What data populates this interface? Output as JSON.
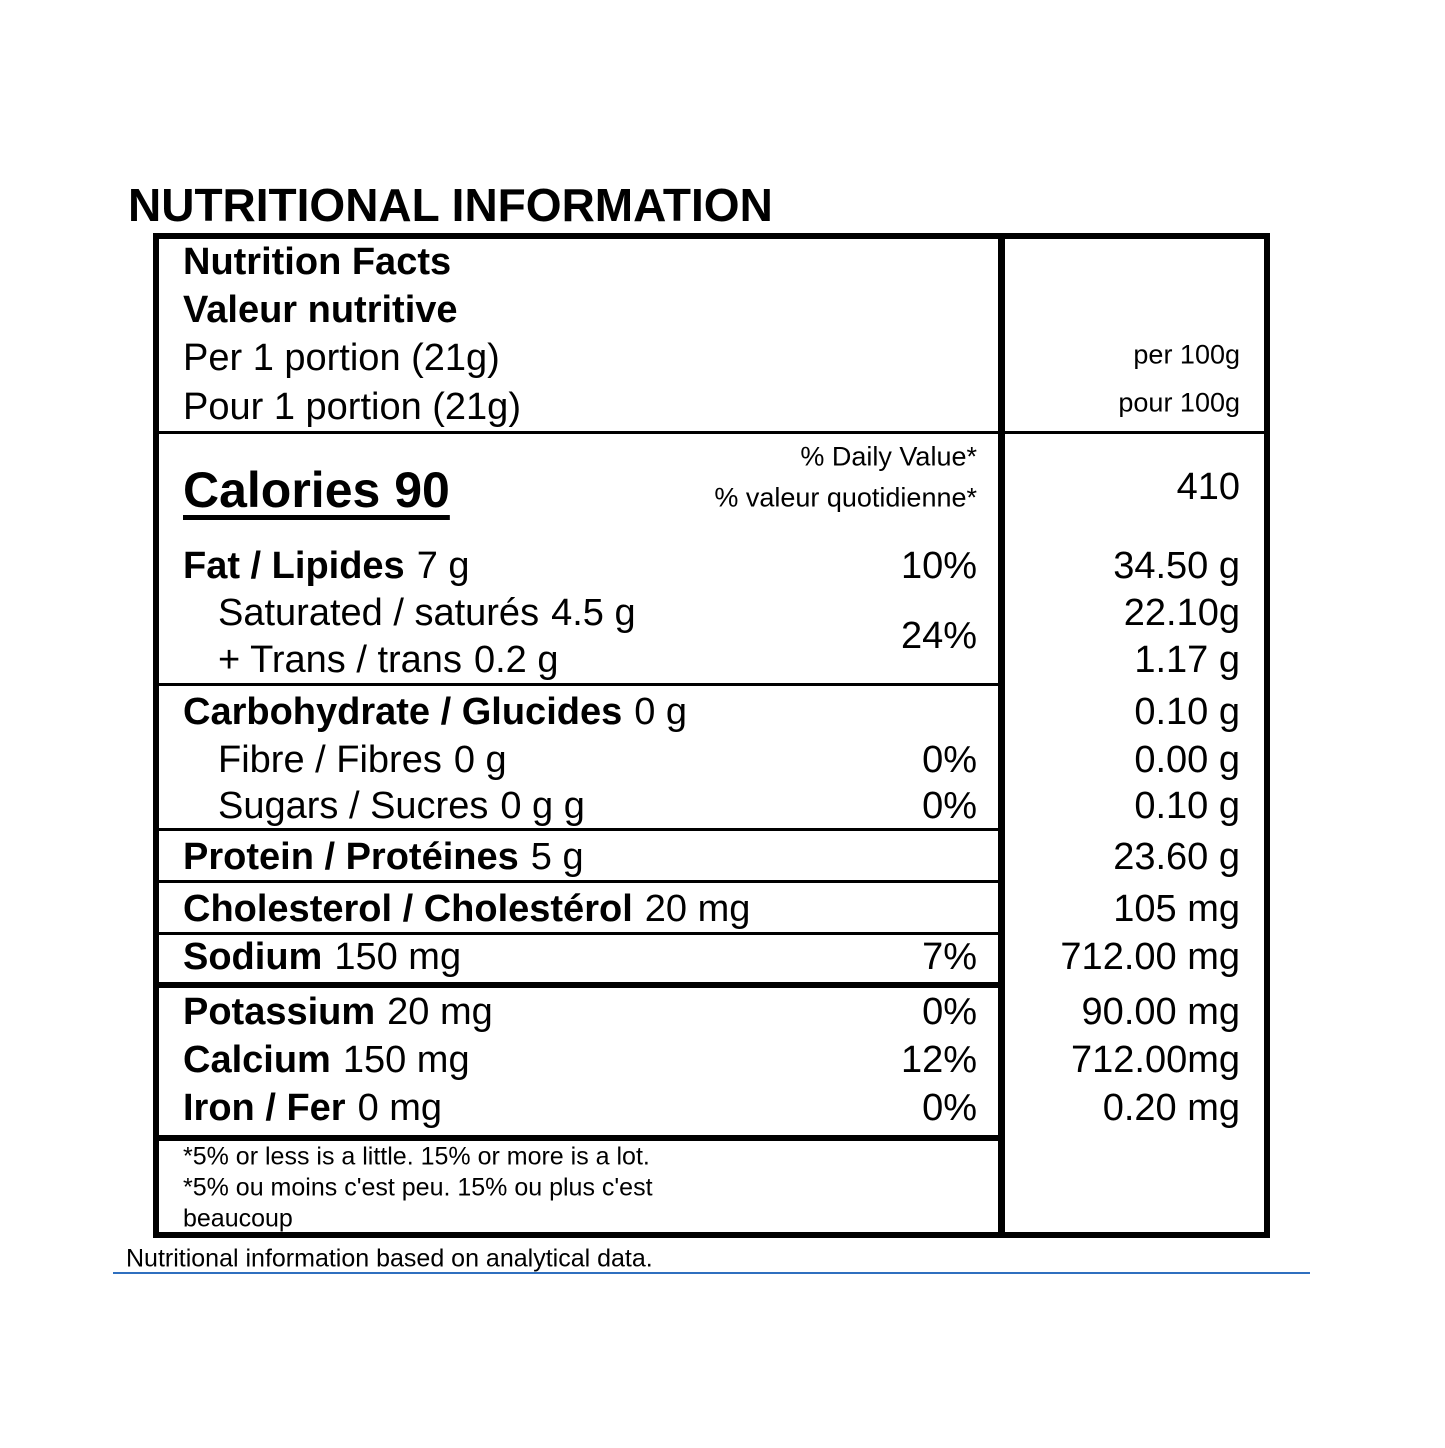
{
  "title": "NUTRITIONAL INFORMATION",
  "header": {
    "line1": "Nutrition Facts",
    "line2": "Valeur nutritive",
    "line3": "Per 1 portion (21g)",
    "line4": "Pour 1 portion (21g)",
    "per100_en": "per 100g",
    "per100_fr": "pour 100g"
  },
  "calories": {
    "label": "Calories 90",
    "dv_en": "% Daily Value*",
    "dv_fr": "% valeur quotidienne*",
    "per100": "410"
  },
  "rows": [
    {
      "name": "Fat / Lipides",
      "amount": "7 g",
      "dv": "10%",
      "per100": "34.50 g"
    },
    {
      "name": "Saturated / saturés",
      "amount": "4.5 g",
      "per100": "22.10g"
    },
    {
      "name": "+ Trans / trans",
      "amount": "0.2 g",
      "per100": "1.17 g"
    },
    {
      "name": "Carbohydrate / Glucides",
      "amount": "0 g",
      "per100": "0.10 g"
    },
    {
      "name": "Fibre / Fibres",
      "amount": "0 g",
      "dv": "0%",
      "per100": "0.00 g"
    },
    {
      "name": "Sugars / Sucres",
      "amount": "0 g g",
      "dv": "0%",
      "per100": "0.10 g"
    },
    {
      "name": "Protein / Protéines",
      "amount": "5 g",
      "per100": "23.60 g"
    },
    {
      "name": "Cholesterol / Cholestérol",
      "amount": "20 mg",
      "per100": "105 mg"
    },
    {
      "name": "Sodium",
      "amount": "150 mg",
      "dv": "7%",
      "per100": "712.00 mg"
    },
    {
      "name": "Potassium",
      "amount": "20 mg",
      "dv": "0%",
      "per100": "90.00 mg"
    },
    {
      "name": "Calcium",
      "amount": "150 mg",
      "dv": "12%",
      "per100": "712.00mg"
    },
    {
      "name": "Iron / Fer",
      "amount": "0 mg",
      "dv": "0%",
      "per100": "0.20 mg"
    }
  ],
  "saturated_trans_dv": "24%",
  "footnotes": [
    "*5% or less is a little. 15% or more is a lot.",
    "*5% ou moins c'est peu. 15% ou plus c'est",
    "beaucoup"
  ],
  "footer": "Nutritional information based on analytical data."
}
